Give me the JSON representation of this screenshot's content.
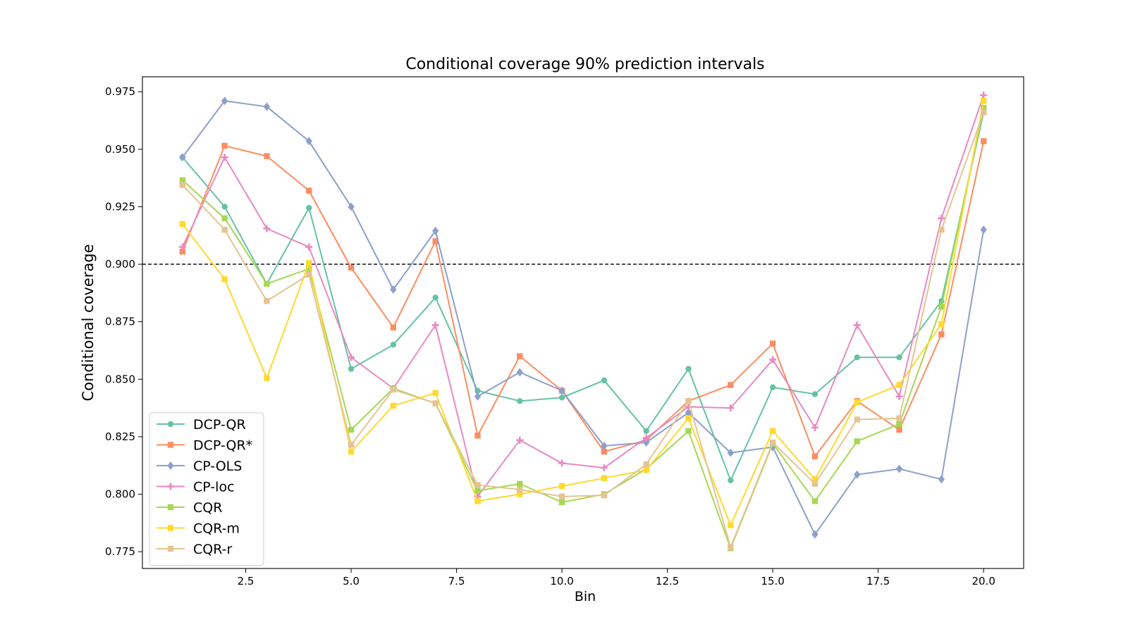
{
  "chart_data": {
    "type": "line",
    "title": "Conditional coverage 90% prediction intervals",
    "xlabel": "Bin",
    "ylabel": "Conditional coverage",
    "xlim": [
      0.05,
      20.95
    ],
    "ylim": [
      0.7677,
      0.9815
    ],
    "x_ticks": [
      2.5,
      5.0,
      7.5,
      10.0,
      12.5,
      15.0,
      17.5,
      20.0
    ],
    "x_tick_labels": [
      "2.5",
      "5.0",
      "7.5",
      "10.0",
      "12.5",
      "15.0",
      "17.5",
      "20.0"
    ],
    "y_ticks": [
      0.775,
      0.8,
      0.825,
      0.85,
      0.875,
      0.9,
      0.925,
      0.95,
      0.975
    ],
    "y_tick_labels": [
      "0.775",
      "0.800",
      "0.825",
      "0.850",
      "0.875",
      "0.900",
      "0.925",
      "0.950",
      "0.975"
    ],
    "reference_line": {
      "y": 0.9,
      "style": "dashed",
      "color": "#000000"
    },
    "grid": false,
    "legend_position": "lower-left",
    "x": [
      1,
      2,
      3,
      4,
      5,
      6,
      7,
      8,
      9,
      10,
      11,
      12,
      13,
      14,
      15,
      16,
      17,
      18,
      19,
      20
    ],
    "series": [
      {
        "name": "DCP-QR",
        "color": "#66c2a5",
        "marker": "circle",
        "values": [
          0.9465,
          0.925,
          0.8915,
          0.9245,
          0.8545,
          0.865,
          0.8855,
          0.845,
          0.8405,
          0.842,
          0.8495,
          0.8275,
          0.8545,
          0.806,
          0.8465,
          0.8435,
          0.8595,
          0.8595,
          0.884,
          0.966
        ]
      },
      {
        "name": "DCP-QR*",
        "color": "#fc8d62",
        "marker": "square",
        "values": [
          0.9055,
          0.9515,
          0.947,
          0.932,
          0.8985,
          0.8725,
          0.91,
          0.8255,
          0.86,
          0.845,
          0.8185,
          0.8235,
          0.8405,
          0.8475,
          0.8655,
          0.8165,
          0.8405,
          0.828,
          0.8695,
          0.9535
        ]
      },
      {
        "name": "CP-OLS",
        "color": "#8da0cb",
        "marker": "diamond",
        "values": [
          0.9465,
          0.971,
          0.9685,
          0.9535,
          0.925,
          0.889,
          0.9145,
          0.8425,
          0.853,
          0.845,
          0.821,
          0.8225,
          0.8355,
          0.818,
          0.8205,
          0.7825,
          0.8085,
          0.811,
          0.8065,
          0.915
        ]
      },
      {
        "name": "CP-loc",
        "color": "#e78ac3",
        "marker": "plus",
        "values": [
          0.9075,
          0.9465,
          0.9155,
          0.9075,
          0.8595,
          0.846,
          0.8735,
          0.799,
          0.8235,
          0.8135,
          0.8115,
          0.8245,
          0.838,
          0.8375,
          0.8585,
          0.829,
          0.8735,
          0.8425,
          0.92,
          0.9735
        ]
      },
      {
        "name": "CQR",
        "color": "#a6d854",
        "marker": "square",
        "values": [
          0.9365,
          0.92,
          0.8915,
          0.898,
          0.828,
          0.846,
          0.8395,
          0.8015,
          0.8045,
          0.7965,
          0.8,
          0.811,
          0.8275,
          0.7765,
          0.822,
          0.797,
          0.823,
          0.8305,
          0.8815,
          0.968
        ]
      },
      {
        "name": "CQR-m",
        "color": "#ffd92f",
        "marker": "square",
        "values": [
          0.9175,
          0.8935,
          0.8505,
          0.9005,
          0.8185,
          0.8385,
          0.844,
          0.797,
          0.8,
          0.8035,
          0.807,
          0.8105,
          0.833,
          0.7865,
          0.8275,
          0.8065,
          0.84,
          0.8475,
          0.874,
          0.971
        ]
      },
      {
        "name": "CQR-r",
        "color": "#e5c494",
        "marker": "square",
        "values": [
          0.9345,
          0.915,
          0.884,
          0.8955,
          0.8215,
          0.8455,
          0.8395,
          0.804,
          0.802,
          0.799,
          0.7995,
          0.813,
          0.8405,
          0.777,
          0.8225,
          0.8045,
          0.8325,
          0.833,
          0.915,
          0.966
        ]
      }
    ]
  }
}
